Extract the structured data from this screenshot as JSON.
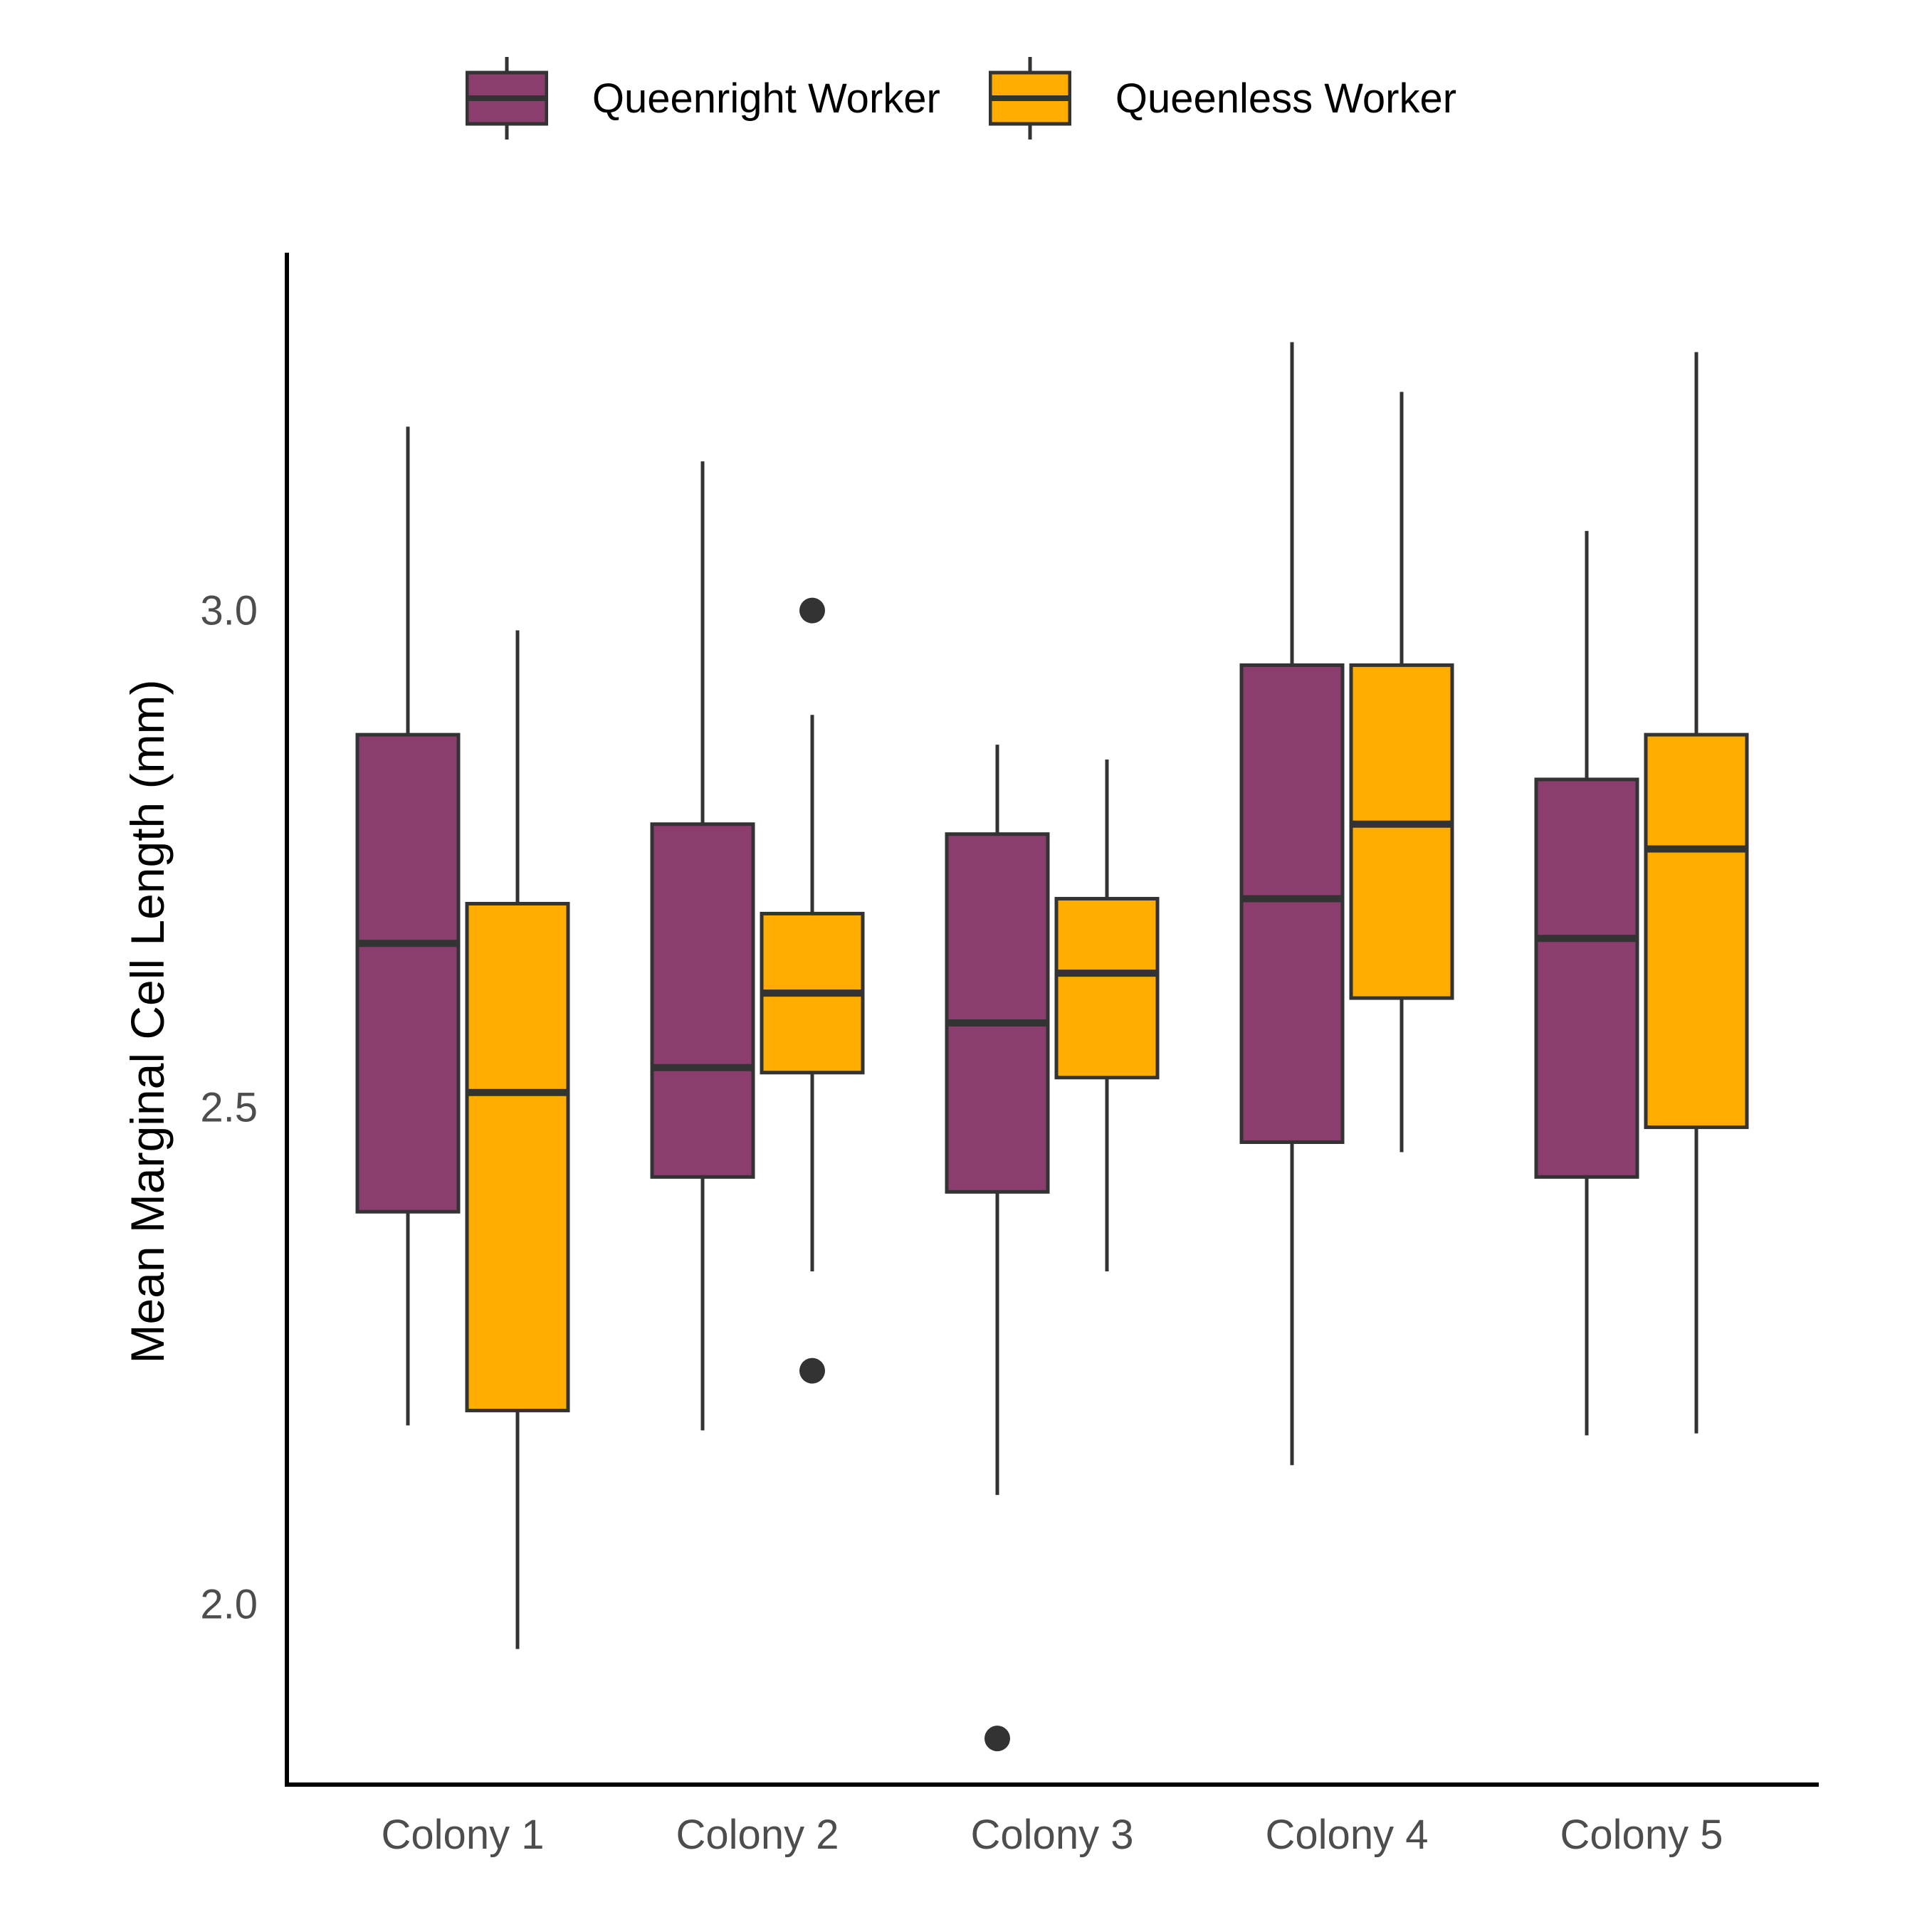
{
  "chart_data": {
    "type": "boxplot",
    "title": "",
    "xlabel": "",
    "ylabel": "Mean Marginal Cell Length (mm)",
    "categories": [
      "Colony 1",
      "Colony 2",
      "Colony 3",
      "Colony 4",
      "Colony 5"
    ],
    "ylim": [
      1.82,
      3.36
    ],
    "yticks": [
      "2.0",
      "2.5",
      "3.0"
    ],
    "grid": false,
    "legend_position": "top",
    "series": [
      {
        "name": "Queenright Worker",
        "color": "#8b3d6e",
        "boxes": [
          {
            "min": 2.18,
            "q1": 2.395,
            "median": 2.665,
            "q3": 2.875,
            "max": 3.185,
            "outliers": []
          },
          {
            "min": 2.175,
            "q1": 2.43,
            "median": 2.54,
            "q3": 2.785,
            "max": 3.15,
            "outliers": []
          },
          {
            "min": 2.11,
            "q1": 2.415,
            "median": 2.585,
            "q3": 2.775,
            "max": 2.865,
            "outliers": [
              1.865
            ]
          },
          {
            "min": 2.14,
            "q1": 2.465,
            "median": 2.71,
            "q3": 2.945,
            "max": 3.27,
            "outliers": []
          },
          {
            "min": 2.17,
            "q1": 2.43,
            "median": 2.67,
            "q3": 2.83,
            "max": 3.08,
            "outliers": []
          }
        ]
      },
      {
        "name": "Queenless Worker",
        "color": "#ffad00",
        "boxes": [
          {
            "min": 1.955,
            "q1": 2.195,
            "median": 2.515,
            "q3": 2.705,
            "max": 2.98,
            "outliers": []
          },
          {
            "min": 2.335,
            "q1": 2.535,
            "median": 2.615,
            "q3": 2.695,
            "max": 2.895,
            "outliers": [
              2.235,
              3.0
            ]
          },
          {
            "min": 2.335,
            "q1": 2.53,
            "median": 2.635,
            "q3": 2.71,
            "max": 2.85,
            "outliers": []
          },
          {
            "min": 2.455,
            "q1": 2.61,
            "median": 2.785,
            "q3": 2.945,
            "max": 3.22,
            "outliers": []
          },
          {
            "min": 2.172,
            "q1": 2.48,
            "median": 2.76,
            "q3": 2.875,
            "max": 3.26,
            "outliers": []
          }
        ]
      }
    ]
  }
}
